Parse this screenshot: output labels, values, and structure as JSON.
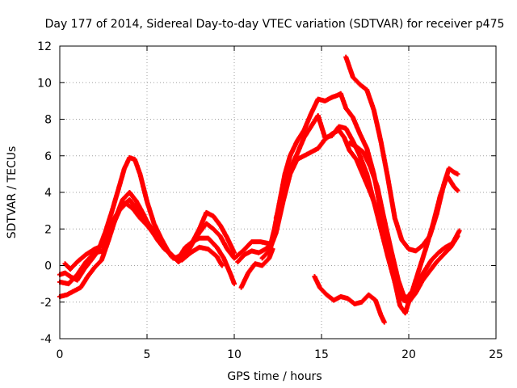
{
  "chart_data": {
    "type": "scatter",
    "title": "Day 177 of 2014, Sidereal Day-to-day VTEC variation (SDTVAR) for receiver p475",
    "xlabel": "GPS time / hours",
    "ylabel": "SDTVAR / TECUs",
    "xlim": [
      0,
      25
    ],
    "ylim": [
      -4,
      12
    ],
    "xticks": [
      0,
      5,
      10,
      15,
      20,
      25
    ],
    "yticks": [
      -4,
      -2,
      0,
      2,
      4,
      6,
      8,
      10,
      12
    ],
    "grid": true,
    "marker": "+",
    "color": "#ff0000",
    "tracks": [
      [
        [
          0.0,
          -0.5
        ],
        [
          0.3,
          -0.4
        ],
        [
          0.6,
          -0.6
        ],
        [
          1.0,
          -0.8
        ],
        [
          1.4,
          -0.2
        ],
        [
          1.8,
          0.3
        ],
        [
          2.2,
          0.8
        ],
        [
          2.6,
          1.8
        ],
        [
          3.0,
          3.0
        ],
        [
          3.4,
          4.3
        ],
        [
          3.7,
          5.3
        ],
        [
          4.0,
          5.9
        ],
        [
          4.3,
          5.8
        ],
        [
          4.6,
          5.0
        ],
        [
          5.0,
          3.5
        ],
        [
          5.4,
          2.3
        ],
        [
          5.8,
          1.5
        ],
        [
          6.2,
          0.8
        ],
        [
          6.6,
          0.4
        ],
        [
          7.0,
          0.6
        ],
        [
          7.5,
          1.1
        ],
        [
          8.0,
          2.0
        ],
        [
          8.4,
          2.9
        ],
        [
          8.8,
          2.7
        ],
        [
          9.2,
          2.2
        ],
        [
          9.6,
          1.5
        ],
        [
          10.0,
          0.7
        ]
      ],
      [
        [
          0.0,
          -1.7
        ],
        [
          0.4,
          -1.6
        ],
        [
          0.8,
          -1.4
        ],
        [
          1.2,
          -1.2
        ],
        [
          1.6,
          -0.6
        ],
        [
          2.0,
          -0.1
        ],
        [
          2.4,
          0.3
        ],
        [
          2.8,
          1.4
        ],
        [
          3.2,
          2.6
        ],
        [
          3.6,
          3.6
        ],
        [
          4.0,
          4.0
        ],
        [
          4.4,
          3.5
        ],
        [
          4.8,
          2.8
        ],
        [
          5.2,
          2.0
        ],
        [
          5.6,
          1.4
        ],
        [
          6.0,
          0.9
        ],
        [
          6.4,
          0.6
        ],
        [
          6.8,
          0.2
        ],
        [
          7.2,
          0.5
        ],
        [
          7.6,
          1.2
        ],
        [
          8.0,
          1.8
        ],
        [
          8.4,
          2.3
        ],
        [
          8.8,
          2.0
        ],
        [
          9.2,
          1.6
        ],
        [
          9.6,
          0.9
        ],
        [
          10.0,
          0.4
        ],
        [
          10.5,
          0.8
        ],
        [
          11.0,
          1.3
        ],
        [
          11.5,
          1.3
        ],
        [
          12.0,
          1.2
        ]
      ],
      [
        [
          0.3,
          0.1
        ],
        [
          0.6,
          -0.2
        ],
        [
          1.0,
          0.2
        ],
        [
          1.5,
          0.6
        ],
        [
          2.0,
          0.9
        ],
        [
          2.5,
          1.1
        ],
        [
          3.0,
          2.4
        ],
        [
          3.4,
          3.0
        ],
        [
          3.8,
          3.4
        ],
        [
          4.2,
          3.1
        ],
        [
          4.6,
          2.6
        ],
        [
          5.0,
          2.2
        ],
        [
          5.5,
          1.6
        ],
        [
          6.0,
          1.1
        ],
        [
          6.4,
          0.5
        ],
        [
          6.8,
          0.4
        ],
        [
          7.2,
          1.0
        ],
        [
          7.6,
          1.3
        ],
        [
          8.0,
          1.5
        ],
        [
          8.5,
          1.5
        ],
        [
          9.0,
          1.0
        ],
        [
          9.4,
          0.4
        ],
        [
          9.8,
          -0.5
        ],
        [
          10.0,
          -1.0
        ]
      ],
      [
        [
          0.0,
          -0.9
        ],
        [
          0.5,
          -1.0
        ],
        [
          1.0,
          -0.5
        ],
        [
          1.5,
          0.2
        ],
        [
          2.0,
          0.7
        ],
        [
          2.5,
          0.8
        ],
        [
          3.0,
          2.1
        ],
        [
          3.5,
          3.2
        ],
        [
          4.0,
          3.6
        ],
        [
          4.5,
          3.0
        ],
        [
          5.0,
          2.4
        ],
        [
          5.5,
          1.7
        ],
        [
          6.0,
          1.0
        ],
        [
          6.5,
          0.4
        ],
        [
          7.0,
          0.3
        ],
        [
          7.5,
          0.7
        ],
        [
          8.0,
          1.0
        ],
        [
          8.5,
          0.9
        ],
        [
          9.0,
          0.5
        ],
        [
          9.3,
          0.0
        ]
      ],
      [
        [
          10.2,
          0.2
        ],
        [
          10.6,
          0.6
        ],
        [
          11.0,
          0.8
        ],
        [
          11.4,
          0.7
        ],
        [
          11.8,
          0.9
        ],
        [
          12.1,
          1.2
        ],
        [
          12.3,
          2.0
        ],
        [
          12.6,
          3.5
        ],
        [
          12.9,
          5.0
        ],
        [
          13.2,
          6.0
        ],
        [
          13.6,
          6.8
        ],
        [
          14.0,
          7.4
        ],
        [
          14.4,
          8.3
        ],
        [
          14.8,
          9.1
        ],
        [
          15.2,
          9.0
        ],
        [
          15.6,
          9.2
        ],
        [
          15.9,
          9.3
        ],
        [
          16.1,
          9.4
        ],
        [
          16.4,
          8.6
        ],
        [
          16.8,
          8.1
        ],
        [
          17.2,
          7.2
        ],
        [
          17.6,
          6.4
        ],
        [
          18.0,
          5.0
        ],
        [
          18.4,
          3.0
        ],
        [
          18.8,
          1.0
        ],
        [
          19.2,
          -0.9
        ],
        [
          19.5,
          -2.2
        ],
        [
          19.8,
          -2.6
        ],
        [
          20.1,
          -1.7
        ],
        [
          20.5,
          -0.9
        ],
        [
          20.9,
          -0.3
        ],
        [
          21.3,
          0.3
        ],
        [
          21.7,
          0.7
        ],
        [
          22.1,
          1.0
        ],
        [
          22.5,
          1.2
        ],
        [
          22.9,
          1.9
        ]
      ],
      [
        [
          11.6,
          0.4
        ],
        [
          12.0,
          0.8
        ],
        [
          12.4,
          1.8
        ],
        [
          12.8,
          3.5
        ],
        [
          13.2,
          5.0
        ],
        [
          13.6,
          5.8
        ],
        [
          14.0,
          6.0
        ],
        [
          14.4,
          6.2
        ],
        [
          14.8,
          6.4
        ],
        [
          15.2,
          6.9
        ],
        [
          15.6,
          7.2
        ],
        [
          16.0,
          7.4
        ],
        [
          16.3,
          7.0
        ],
        [
          16.6,
          6.3
        ],
        [
          17.0,
          5.8
        ],
        [
          17.4,
          4.9
        ],
        [
          17.8,
          4.0
        ],
        [
          18.2,
          3.0
        ],
        [
          18.6,
          1.9
        ],
        [
          19.0,
          0.2
        ],
        [
          19.4,
          -1.4
        ],
        [
          19.7,
          -1.9
        ],
        [
          20.0,
          -2.0
        ],
        [
          20.4,
          -1.5
        ],
        [
          20.8,
          -0.8
        ],
        [
          21.2,
          -0.3
        ],
        [
          21.6,
          0.2
        ],
        [
          22.0,
          0.6
        ],
        [
          22.4,
          1.0
        ],
        [
          22.8,
          1.6
        ]
      ],
      [
        [
          12.4,
          2.6
        ],
        [
          12.8,
          4.0
        ],
        [
          13.2,
          5.3
        ],
        [
          13.6,
          6.1
        ],
        [
          14.0,
          7.0
        ],
        [
          14.4,
          7.6
        ],
        [
          14.8,
          8.2
        ],
        [
          15.2,
          7.0
        ],
        [
          15.6,
          7.1
        ],
        [
          16.0,
          7.6
        ],
        [
          16.4,
          7.5
        ],
        [
          16.8,
          6.8
        ],
        [
          17.2,
          6.0
        ],
        [
          17.6,
          5.0
        ],
        [
          18.0,
          3.5
        ],
        [
          18.4,
          2.0
        ],
        [
          18.8,
          0.5
        ],
        [
          19.2,
          -0.9
        ],
        [
          19.6,
          -1.6
        ],
        [
          20.0,
          -1.8
        ]
      ],
      [
        [
          16.4,
          11.4
        ],
        [
          16.8,
          10.3
        ],
        [
          17.2,
          9.9
        ],
        [
          17.6,
          9.6
        ],
        [
          18.0,
          8.5
        ],
        [
          18.4,
          6.8
        ],
        [
          18.8,
          4.8
        ],
        [
          19.2,
          2.6
        ],
        [
          19.6,
          1.4
        ],
        [
          20.0,
          0.9
        ],
        [
          20.4,
          0.8
        ],
        [
          20.8,
          1.1
        ],
        [
          21.2,
          1.6
        ],
        [
          21.6,
          2.8
        ],
        [
          22.0,
          4.4
        ],
        [
          22.3,
          5.3
        ],
        [
          22.6,
          5.1
        ],
        [
          22.8,
          5.0
        ]
      ],
      [
        [
          16.6,
          6.7
        ],
        [
          17.0,
          6.5
        ],
        [
          17.4,
          6.2
        ],
        [
          17.8,
          5.4
        ],
        [
          18.2,
          4.3
        ],
        [
          18.6,
          2.5
        ],
        [
          19.0,
          0.8
        ],
        [
          19.4,
          -0.8
        ],
        [
          19.8,
          -1.9
        ],
        [
          20.2,
          -1.4
        ],
        [
          20.6,
          -0.2
        ],
        [
          21.0,
          1.0
        ],
        [
          21.4,
          2.3
        ],
        [
          21.8,
          3.8
        ],
        [
          22.2,
          4.9
        ],
        [
          22.6,
          4.3
        ],
        [
          22.8,
          4.1
        ]
      ],
      [
        [
          14.6,
          -0.6
        ],
        [
          14.9,
          -1.2
        ],
        [
          15.3,
          -1.6
        ],
        [
          15.7,
          -1.9
        ],
        [
          16.1,
          -1.7
        ],
        [
          16.5,
          -1.8
        ],
        [
          16.9,
          -2.1
        ],
        [
          17.3,
          -2.0
        ],
        [
          17.7,
          -1.6
        ],
        [
          18.1,
          -1.9
        ],
        [
          18.4,
          -2.7
        ],
        [
          18.6,
          -3.1
        ]
      ],
      [
        [
          10.4,
          -1.2
        ],
        [
          10.8,
          -0.4
        ],
        [
          11.2,
          0.1
        ],
        [
          11.6,
          0.0
        ],
        [
          12.0,
          0.4
        ],
        [
          12.2,
          0.9
        ]
      ]
    ]
  }
}
